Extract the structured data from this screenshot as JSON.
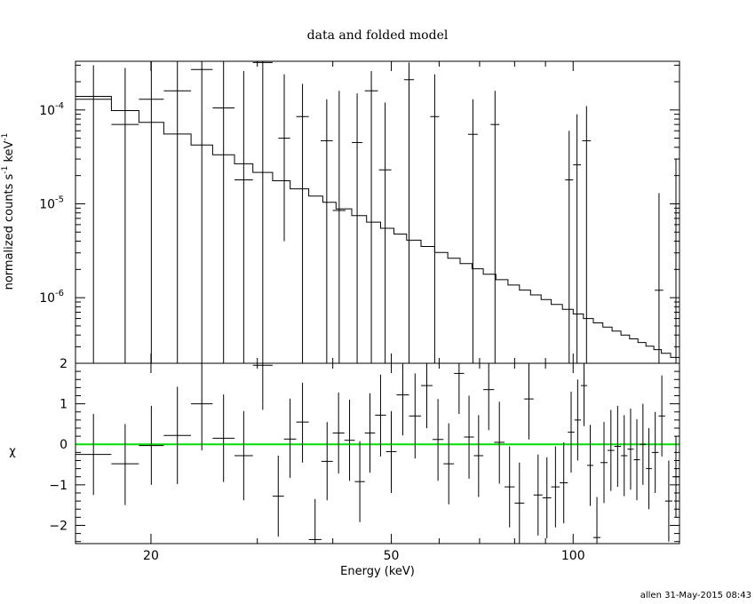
{
  "chart_data": {
    "type": "line",
    "title": "data and folded model",
    "xlabel": "Energy (keV)",
    "xscale": "log",
    "xlim": [
      15,
      150
    ],
    "x_ticks": [
      20,
      50,
      100
    ],
    "x_tick_labels": [
      "20",
      "50",
      "100"
    ],
    "footer": "allen 31-May-2015 08:43",
    "top_panel": {
      "ylabel": "normalized counts s",
      "ylabel_sup1": "-1",
      "ylabel_mid": " keV",
      "ylabel_sup2": "-1",
      "yscale": "log",
      "ylim": [
        2e-07,
        0.00033
      ],
      "y_ticks": [
        {
          "value": 0.0001,
          "base": "10",
          "exp": "-4"
        },
        {
          "value": 1e-05,
          "base": "10",
          "exp": "-5"
        },
        {
          "value": 1e-06,
          "base": "10",
          "exp": "-6"
        }
      ],
      "data": [
        {
          "x": [
            15.0,
            17.2
          ],
          "y": 0.00013,
          "ylo": 2e-07,
          "yhi": 0.0003
        },
        {
          "x": [
            17.2,
            19.1
          ],
          "y": 7e-05,
          "ylo": 2e-07,
          "yhi": 0.00028
        },
        {
          "x": [
            19.1,
            21.0
          ],
          "y": 0.00013,
          "ylo": 2e-07,
          "yhi": 0.00033
        },
        {
          "x": [
            21.0,
            23.3
          ],
          "y": 0.00016,
          "ylo": 2e-07,
          "yhi": 0.00033
        },
        {
          "x": [
            23.3,
            25.3
          ],
          "y": 0.00027,
          "ylo": 2e-07,
          "yhi": 0.00033
        },
        {
          "x": [
            25.3,
            27.5
          ],
          "y": 0.000105,
          "ylo": 2e-07,
          "yhi": 0.00033
        },
        {
          "x": [
            27.5,
            29.5
          ],
          "y": 1.8e-05,
          "ylo": 2e-07,
          "yhi": 0.00026
        },
        {
          "x": [
            29.5,
            31.8
          ],
          "y": 0.00032,
          "ylo": 2e-07,
          "yhi": 0.00033
        },
        {
          "x": [
            32.5,
            34.0
          ],
          "y": 5e-05,
          "ylo": 4e-06,
          "yhi": 0.00024
        },
        {
          "x": [
            34.8,
            36.5
          ],
          "y": 8.5e-05,
          "ylo": 2e-07,
          "yhi": 0.00019
        },
        {
          "x": [
            38.2,
            40.0
          ],
          "y": 4.7e-05,
          "ylo": 2e-07,
          "yhi": 0.00013
        },
        {
          "x": [
            40.0,
            42.0
          ],
          "y": 8.5e-06,
          "ylo": 2e-07,
          "yhi": 0.00016
        },
        {
          "x": [
            43.0,
            44.8
          ],
          "y": 4.5e-05,
          "ylo": 2e-07,
          "yhi": 0.00015
        },
        {
          "x": [
            45.2,
            47.5
          ],
          "y": 0.00016,
          "ylo": 2e-07,
          "yhi": 0.00026
        },
        {
          "x": [
            47.7,
            50.0
          ],
          "y": 2.3e-05,
          "ylo": 2e-07,
          "yhi": 0.00012
        },
        {
          "x": [
            52.5,
            54.5
          ],
          "y": 0.00021,
          "ylo": 2e-07,
          "yhi": 0.00032
        },
        {
          "x": [
            58.0,
            60.0
          ],
          "y": 8.5e-05,
          "ylo": 2e-07,
          "yhi": 0.00024
        },
        {
          "x": [
            67.0,
            69.5
          ],
          "y": 5.5e-05,
          "ylo": 2e-07,
          "yhi": 0.00013
        },
        {
          "x": [
            73.0,
            75.5
          ],
          "y": 7e-05,
          "ylo": 2e-07,
          "yhi": 0.00016
        },
        {
          "x": [
            97.0,
            100.0
          ],
          "y": 1.8e-05,
          "ylo": 2e-07,
          "yhi": 6e-05
        },
        {
          "x": [
            100.0,
            103.0
          ],
          "y": 2.6e-05,
          "ylo": 2e-07,
          "yhi": 9e-05
        },
        {
          "x": [
            103.5,
            107.0
          ],
          "y": 4.7e-05,
          "ylo": 2e-07,
          "yhi": 0.00011
        },
        {
          "x": [
            136.5,
            141.0
          ],
          "y": 1.2e-06,
          "ylo": 2e-07,
          "yhi": 1.3e-05
        },
        {
          "x": [
            146.0,
            150.0
          ],
          "y": 1e-05,
          "ylo": 2e-07,
          "yhi": 3e-05
        }
      ],
      "model": {
        "edges": [
          15.0,
          17.2,
          19.1,
          21.0,
          23.3,
          25.3,
          27.5,
          29.5,
          31.8,
          34.0,
          36.5,
          38.5,
          40.5,
          43.0,
          45.5,
          48.0,
          50.5,
          53.0,
          56.0,
          59.0,
          62.0,
          65.0,
          68.0,
          71.0,
          74.5,
          78.0,
          81.5,
          85.0,
          88.5,
          92.0,
          96.0,
          100.0,
          104.0,
          108.0,
          112.0,
          116.0,
          120.0,
          124.0,
          128.0,
          132.0,
          136.0,
          140.0,
          145.0,
          150.0
        ],
        "y_start": 0.00017,
        "y_end": 2.2e-07
      }
    },
    "bottom_panel": {
      "ylabel": "χ",
      "ylim": [
        -2.45,
        2.0
      ],
      "y_ticks": [
        -2,
        -1,
        0,
        1,
        2
      ],
      "y_tick_labels": [
        "−2",
        "−1",
        "0",
        "1",
        "2"
      ],
      "zero_line_color": "#00dd00",
      "data": [
        {
          "x": [
            15.0,
            17.2
          ],
          "y": -0.25,
          "ylo": -1.25,
          "yhi": 0.75
        },
        {
          "x": [
            17.2,
            19.1
          ],
          "y": -0.48,
          "ylo": -1.5,
          "yhi": 0.5
        },
        {
          "x": [
            19.1,
            21.0
          ],
          "y": -0.03,
          "ylo": -1.0,
          "yhi": 0.95
        },
        {
          "x": [
            21.0,
            23.3
          ],
          "y": 0.22,
          "ylo": -0.98,
          "yhi": 1.42
        },
        {
          "x": [
            23.3,
            25.3
          ],
          "y": 1.0,
          "ylo": -0.15,
          "yhi": 2.0
        },
        {
          "x": [
            25.3,
            27.5
          ],
          "y": 0.15,
          "ylo": -0.93,
          "yhi": 1.23
        },
        {
          "x": [
            27.5,
            29.5
          ],
          "y": -0.28,
          "ylo": -1.38,
          "yhi": 0.82
        },
        {
          "x": [
            29.5,
            31.8
          ],
          "y": 1.95,
          "ylo": 0.85,
          "yhi": 2.0
        },
        {
          "x": [
            31.8,
            33.2
          ],
          "y": -1.28,
          "ylo": -2.28,
          "yhi": -0.28
        },
        {
          "x": [
            33.2,
            34.8
          ],
          "y": 0.13,
          "ylo": -0.83,
          "yhi": 1.13
        },
        {
          "x": [
            34.8,
            36.5
          ],
          "y": 0.55,
          "ylo": -0.45,
          "yhi": 1.52
        },
        {
          "x": [
            36.5,
            38.3
          ],
          "y": -2.35,
          "ylo": -2.45,
          "yhi": -1.35
        },
        {
          "x": [
            38.3,
            40.0
          ],
          "y": -0.42,
          "ylo": -1.38,
          "yhi": 0.55
        },
        {
          "x": [
            40.0,
            41.8
          ],
          "y": 0.28,
          "ylo": -0.72,
          "yhi": 1.28
        },
        {
          "x": [
            41.8,
            43.5
          ],
          "y": 0.1,
          "ylo": -0.9,
          "yhi": 1.1
        },
        {
          "x": [
            43.5,
            45.2
          ],
          "y": -0.92,
          "ylo": -1.92,
          "yhi": 0.08
        },
        {
          "x": [
            45.2,
            47.0
          ],
          "y": 0.28,
          "ylo": -0.7,
          "yhi": 1.26
        },
        {
          "x": [
            47.0,
            49.0
          ],
          "y": 0.72,
          "ylo": -0.3,
          "yhi": 1.72
        },
        {
          "x": [
            49.0,
            51.0
          ],
          "y": -0.18,
          "ylo": -1.2,
          "yhi": 0.82
        },
        {
          "x": [
            51.0,
            53.5
          ],
          "y": 1.22,
          "ylo": 0.22,
          "yhi": 2.0
        },
        {
          "x": [
            53.5,
            56.0
          ],
          "y": 0.7,
          "ylo": -0.35,
          "yhi": 1.75
        },
        {
          "x": [
            56.0,
            58.5
          ],
          "y": 1.45,
          "ylo": 0.4,
          "yhi": 2.0
        },
        {
          "x": [
            58.5,
            61.0
          ],
          "y": 0.12,
          "ylo": -0.9,
          "yhi": 1.12
        },
        {
          "x": [
            61.0,
            63.5
          ],
          "y": -0.48,
          "ylo": -1.48,
          "yhi": 0.52
        },
        {
          "x": [
            63.5,
            66.0
          ],
          "y": 1.75,
          "ylo": 0.75,
          "yhi": 2.0
        },
        {
          "x": [
            66.0,
            68.5
          ],
          "y": 0.18,
          "ylo": -0.85,
          "yhi": 1.2
        },
        {
          "x": [
            68.5,
            71.0
          ],
          "y": -0.28,
          "ylo": -1.3,
          "yhi": 0.72
        },
        {
          "x": [
            71.0,
            74.0
          ],
          "y": 1.35,
          "ylo": 0.35,
          "yhi": 2.0
        },
        {
          "x": [
            74.0,
            77.0
          ],
          "y": 0.05,
          "ylo": -0.97,
          "yhi": 1.05
        },
        {
          "x": [
            77.0,
            80.0
          ],
          "y": -1.05,
          "ylo": -2.05,
          "yhi": -0.05
        },
        {
          "x": [
            80.0,
            83.0
          ],
          "y": -1.45,
          "ylo": -2.45,
          "yhi": -0.45
        },
        {
          "x": [
            83.0,
            86.0
          ],
          "y": 1.12,
          "ylo": 0.12,
          "yhi": 2.0
        },
        {
          "x": [
            86.0,
            89.0
          ],
          "y": -1.25,
          "ylo": -2.25,
          "yhi": -0.25
        },
        {
          "x": [
            89.0,
            92.0
          ],
          "y": -1.32,
          "ylo": -2.32,
          "yhi": -0.32
        },
        {
          "x": [
            92.0,
            95.0
          ],
          "y": -1.05,
          "ylo": -2.05,
          "yhi": -0.05
        },
        {
          "x": [
            95.0,
            98.0
          ],
          "y": -0.95,
          "ylo": -1.95,
          "yhi": 0.05
        },
        {
          "x": [
            98.0,
            100.5
          ],
          "y": 0.3,
          "ylo": -0.7,
          "yhi": 1.3
        },
        {
          "x": [
            100.5,
            103.0
          ],
          "y": 0.6,
          "ylo": -0.4,
          "yhi": 1.6
        },
        {
          "x": [
            103.0,
            105.5
          ],
          "y": 1.45,
          "ylo": 0.45,
          "yhi": 2.0
        },
        {
          "x": [
            105.5,
            108.0
          ],
          "y": -0.52,
          "ylo": -1.52,
          "yhi": 0.48
        },
        {
          "x": [
            108.0,
            111.0
          ],
          "y": -2.3,
          "ylo": -2.45,
          "yhi": -1.3
        },
        {
          "x": [
            111.0,
            114.0
          ],
          "y": -0.45,
          "ylo": -1.45,
          "yhi": 0.55
        },
        {
          "x": [
            114.0,
            117.0
          ],
          "y": -0.15,
          "ylo": -1.15,
          "yhi": 0.85
        },
        {
          "x": [
            117.0,
            120.0
          ],
          "y": -0.05,
          "ylo": -1.05,
          "yhi": 0.95
        },
        {
          "x": [
            120.0,
            123.0
          ],
          "y": -0.28,
          "ylo": -1.28,
          "yhi": 0.72
        },
        {
          "x": [
            123.0,
            126.0
          ],
          "y": -0.12,
          "ylo": -1.12,
          "yhi": 0.88
        },
        {
          "x": [
            126.0,
            129.0
          ],
          "y": -0.38,
          "ylo": -1.38,
          "yhi": 0.62
        },
        {
          "x": [
            129.0,
            132.0
          ],
          "y": 0.0,
          "ylo": -1.0,
          "yhi": 1.0
        },
        {
          "x": [
            132.0,
            135.0
          ],
          "y": -0.6,
          "ylo": -1.6,
          "yhi": 0.4
        },
        {
          "x": [
            135.0,
            138.5
          ],
          "y": -0.2,
          "ylo": -1.2,
          "yhi": 0.8
        },
        {
          "x": [
            138.5,
            142.0
          ],
          "y": 0.7,
          "ylo": -0.3,
          "yhi": 1.7
        },
        {
          "x": [
            142.0,
            146.0
          ],
          "y": -1.4,
          "ylo": -2.4,
          "yhi": -0.4
        },
        {
          "x": [
            146.0,
            150.0
          ],
          "y": -0.8,
          "ylo": -1.8,
          "yhi": 0.2
        }
      ]
    }
  }
}
